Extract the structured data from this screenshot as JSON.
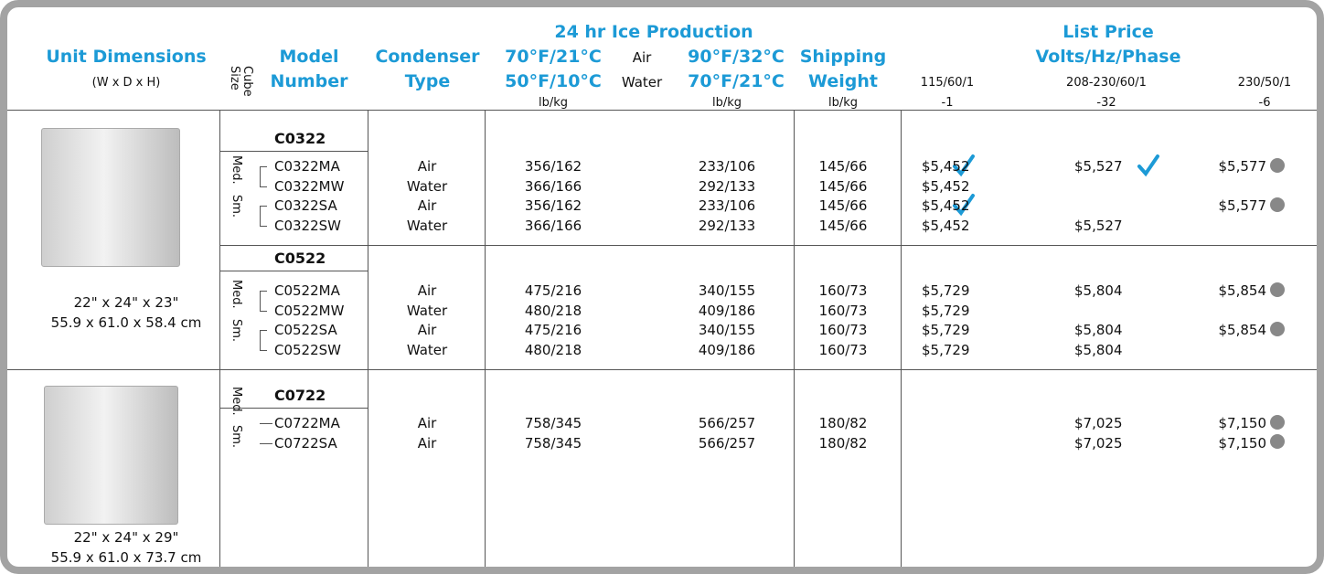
{
  "header": {
    "unit_dimensions": "Unit Dimensions",
    "dimension_order": "(W x D x H)",
    "cube_size": "Cube Size",
    "model_number": "Model Number",
    "condenser_type": "Condenser Type",
    "ice_production": "24 hr Ice Production",
    "production_air_1": "70°F/21°C",
    "air": "Air",
    "production_air_2": "90°F/32°C",
    "production_water_1": "50°F/10°C",
    "water": "Water",
    "production_water_2": "70°F/21°C",
    "production_unit_1": "lb/kg",
    "production_unit_2": "lb/kg",
    "shipping_weight": "Shipping Weight",
    "shipping_unit": "lb/kg",
    "list_price": "List Price",
    "volts": "Volts/Hz/Phase",
    "voltages": [
      {
        "spec": "115/60/1",
        "suffix": "-1"
      },
      {
        "spec": "208-230/60/1",
        "suffix": "-32"
      },
      {
        "spec": "230/50/1",
        "suffix": "-6"
      }
    ]
  },
  "groups": [
    {
      "dimensions_in": "22\" x 24\" x 23\"",
      "dimensions_cm": "55.9 x 61.0 x 58.4 cm",
      "families": [
        {
          "name": "C0322",
          "sizes": [
            {
              "label": "Med.",
              "rows": [
                [
                  "C0322MA",
                  "Air",
                  "356/162",
                  "233/106",
                  "145/66",
                  "$5,452",
                  "$5,527",
                  "$5,577"
                ],
                [
                  "C0322MW",
                  "Water",
                  "366/166",
                  "292/133",
                  "145/66",
                  "$5,452",
                  null,
                  null
                ]
              ]
            },
            {
              "label": "Sm.",
              "rows": [
                [
                  "C0322SA",
                  "Air",
                  "356/162",
                  "233/106",
                  "145/66",
                  "$5,452",
                  null,
                  "$5,577"
                ],
                [
                  "C0322SW",
                  "Water",
                  "366/166",
                  "292/133",
                  "145/66",
                  "$5,452",
                  "$5,527",
                  null
                ]
              ]
            }
          ]
        },
        {
          "name": "C0522",
          "sizes": [
            {
              "label": "Med.",
              "rows": [
                [
                  "C0522MA",
                  "Air",
                  "475/216",
                  "340/155",
                  "160/73",
                  "$5,729",
                  "$5,804",
                  "$5,854"
                ],
                [
                  "C0522MW",
                  "Water",
                  "480/218",
                  "409/186",
                  "160/73",
                  "$5,729",
                  null,
                  null
                ]
              ]
            },
            {
              "label": "Sm.",
              "rows": [
                [
                  "C0522SA",
                  "Air",
                  "475/216",
                  "340/155",
                  "160/73",
                  "$5,729",
                  "$5,804",
                  "$5,854"
                ],
                [
                  "C0522SW",
                  "Water",
                  "480/218",
                  "409/186",
                  "160/73",
                  "$5,729",
                  "$5,804",
                  null
                ]
              ]
            }
          ]
        }
      ]
    },
    {
      "dimensions_in": "22\" x 24\" x 29\"",
      "dimensions_cm": "55.9 x 61.0 x 73.7 cm",
      "families": [
        {
          "name": "C0722",
          "sizes": [
            {
              "label": "Med.",
              "rows": [
                [
                  "C0722MA",
                  "Air",
                  "758/345",
                  "566/257",
                  "180/82",
                  null,
                  "$7,025",
                  "$7,150"
                ]
              ]
            },
            {
              "label": "Sm.",
              "rows": [
                [
                  "C0722SA",
                  "Air",
                  "758/345",
                  "566/257",
                  "180/82",
                  null,
                  "$7,025",
                  "$7,150"
                ]
              ]
            }
          ]
        }
      ]
    }
  ]
}
